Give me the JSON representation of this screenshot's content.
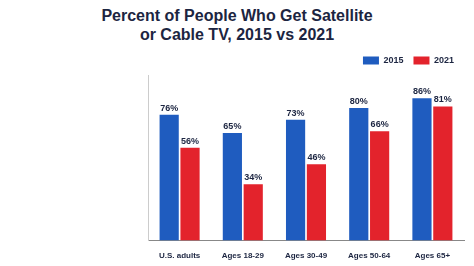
{
  "chart_data": {
    "type": "bar",
    "title": [
      "Percent of People Who Get Satellite",
      "or Cable TV, 2015 vs 2021"
    ],
    "categories": [
      "U.S. adults",
      "Ages 18-29",
      "Ages 30-49",
      "Ages 50-64",
      "Ages 65+"
    ],
    "series": [
      {
        "name": "2015",
        "color": "#1f5cbf",
        "values": [
          76,
          65,
          73,
          80,
          86
        ],
        "value_labels": [
          "76%",
          "65%",
          "73%",
          "80%",
          "86%"
        ]
      },
      {
        "name": "2021",
        "color": "#e3232c",
        "values": [
          56,
          34,
          46,
          66,
          81
        ],
        "value_labels": [
          "56%",
          "34%",
          "46%",
          "66%",
          "81%"
        ]
      }
    ],
    "ylim": [
      0,
      100
    ],
    "grid": false,
    "legend": "top-right",
    "data_labels": true,
    "tick_labels": "x"
  }
}
